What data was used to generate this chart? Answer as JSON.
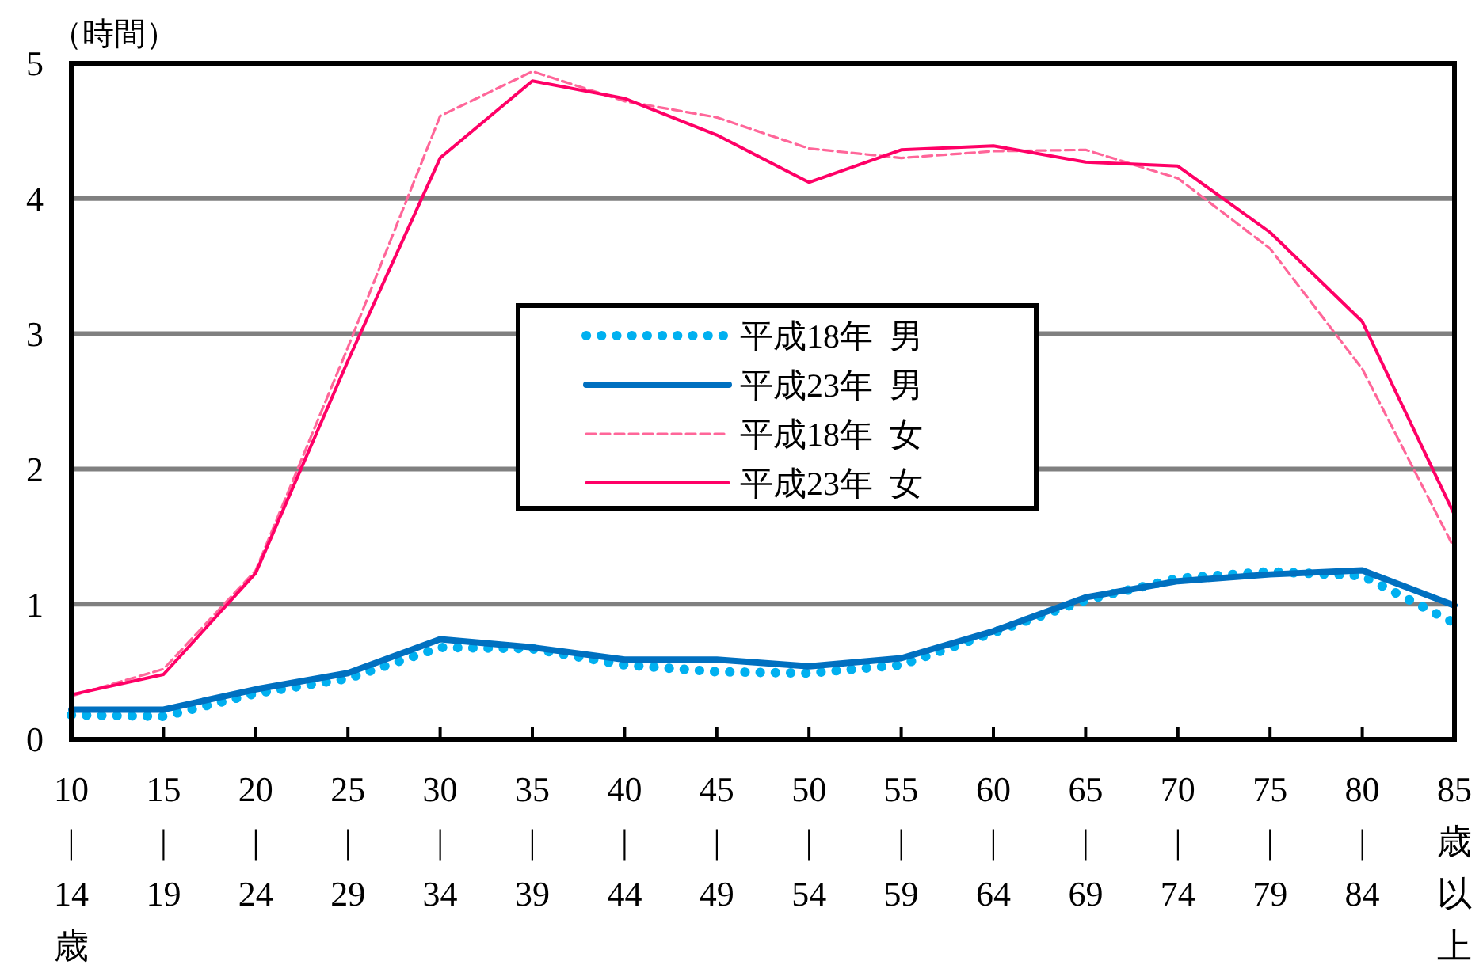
{
  "chart_data": {
    "type": "line",
    "ylabel": "（時間）",
    "categories": [
      "10|14歳",
      "15|19",
      "20|24",
      "25|29",
      "30|34",
      "35|39",
      "40|44",
      "45|49",
      "50|54",
      "55|59",
      "60|64",
      "65|69",
      "70|74",
      "75|79",
      "80|84",
      "85歳以上"
    ],
    "series": [
      {
        "name": "平成18年  男",
        "color": "#00b0f0",
        "line_style": "dotted",
        "values": [
          0.18,
          0.17,
          0.34,
          0.45,
          0.68,
          0.67,
          0.55,
          0.5,
          0.49,
          0.55,
          0.79,
          1.03,
          1.19,
          1.24,
          1.21,
          0.86
        ]
      },
      {
        "name": "平成23年  男",
        "color": "#0070c0",
        "line_style": "solid",
        "values": [
          0.22,
          0.22,
          0.37,
          0.49,
          0.74,
          0.68,
          0.59,
          0.59,
          0.54,
          0.6,
          0.8,
          1.05,
          1.17,
          1.22,
          1.25,
          0.99
        ]
      },
      {
        "name": "平成18年  女",
        "color": "#ff6699",
        "line_style": "dashed",
        "values": [
          0.32,
          0.52,
          1.25,
          2.9,
          4.61,
          4.94,
          4.72,
          4.6,
          4.37,
          4.3,
          4.35,
          4.36,
          4.15,
          3.63,
          2.74,
          1.41
        ]
      },
      {
        "name": "平成23年  女",
        "color": "#ff0066",
        "line_style": "solid",
        "values": [
          0.33,
          0.48,
          1.23,
          2.8,
          4.3,
          4.87,
          4.74,
          4.47,
          4.12,
          4.36,
          4.39,
          4.27,
          4.24,
          3.75,
          3.09,
          1.66
        ]
      }
    ],
    "ylim": [
      0,
      5
    ],
    "yticks": [
      0,
      1,
      2,
      3,
      4,
      5
    ],
    "grid": "y",
    "legend": "center",
    "marker": "none"
  }
}
